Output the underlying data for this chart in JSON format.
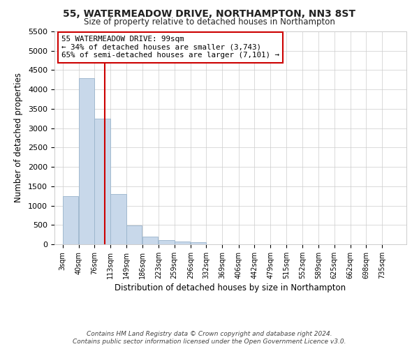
{
  "title": "55, WATERMEADOW DRIVE, NORTHAMPTON, NN3 8ST",
  "subtitle": "Size of property relative to detached houses in Northampton",
  "xlabel": "Distribution of detached houses by size in Northampton",
  "ylabel": "Number of detached properties",
  "footnote1": "Contains HM Land Registry data © Crown copyright and database right 2024.",
  "footnote2": "Contains public sector information licensed under the Open Government Licence v3.0.",
  "annotation_line1": "55 WATERMEADOW DRIVE: 99sqm",
  "annotation_line2": "← 34% of detached houses are smaller (3,743)",
  "annotation_line3": "65% of semi-detached houses are larger (7,101) →",
  "property_size_bin": 2,
  "bar_color": "#c8d8ea",
  "bar_edge_color": "#9ab4cc",
  "redline_color": "#cc0000",
  "annotation_box_edgecolor": "#cc0000",
  "background_color": "#ffffff",
  "grid_color": "#cccccc",
  "categories": [
    "3sqm",
    "40sqm",
    "76sqm",
    "113sqm",
    "149sqm",
    "186sqm",
    "223sqm",
    "259sqm",
    "296sqm",
    "332sqm",
    "369sqm",
    "406sqm",
    "442sqm",
    "479sqm",
    "515sqm",
    "552sqm",
    "589sqm",
    "625sqm",
    "662sqm",
    "698sqm",
    "735sqm"
  ],
  "bin_left_edges": [
    3,
    40,
    76,
    113,
    149,
    186,
    223,
    259,
    296,
    332,
    369,
    406,
    442,
    479,
    515,
    552,
    589,
    625,
    662,
    698,
    735
  ],
  "bin_width": 37,
  "values": [
    1250,
    4300,
    3250,
    1300,
    480,
    200,
    100,
    80,
    60,
    0,
    0,
    0,
    0,
    0,
    0,
    0,
    0,
    0,
    0,
    0,
    0
  ],
  "ylim": [
    0,
    5500
  ],
  "yticks": [
    0,
    500,
    1000,
    1500,
    2000,
    2500,
    3000,
    3500,
    4000,
    4500,
    5000,
    5500
  ],
  "redline_x": 99
}
